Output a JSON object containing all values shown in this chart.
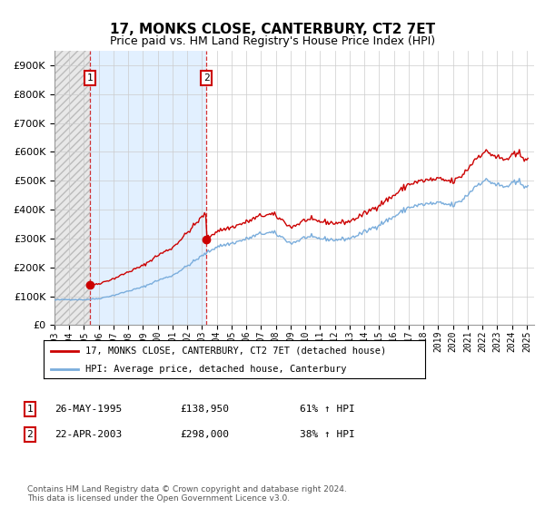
{
  "title": "17, MONKS CLOSE, CANTERBURY, CT2 7ET",
  "subtitle": "Price paid vs. HM Land Registry's House Price Index (HPI)",
  "ylim": [
    0,
    950000
  ],
  "yticks": [
    0,
    100000,
    200000,
    300000,
    400000,
    500000,
    600000,
    700000,
    800000,
    900000
  ],
  "purchase1_date": 1995.38,
  "purchase1_price": 138950,
  "purchase2_date": 2003.3,
  "purchase2_price": 298000,
  "legend_line1": "17, MONKS CLOSE, CANTERBURY, CT2 7ET (detached house)",
  "legend_line2": "HPI: Average price, detached house, Canterbury",
  "table_row1": [
    "1",
    "26-MAY-1995",
    "£138,950",
    "61% ↑ HPI"
  ],
  "table_row2": [
    "2",
    "22-APR-2003",
    "£298,000",
    "38% ↑ HPI"
  ],
  "footnote": "Contains HM Land Registry data © Crown copyright and database right 2024.\nThis data is licensed under the Open Government Licence v3.0.",
  "hpi_color": "#7aaddc",
  "price_color": "#cc0000",
  "grid_color": "#cccccc",
  "purchase_zone_color": "#ddeeff",
  "xmin": 1993.0,
  "xmax": 2025.5
}
